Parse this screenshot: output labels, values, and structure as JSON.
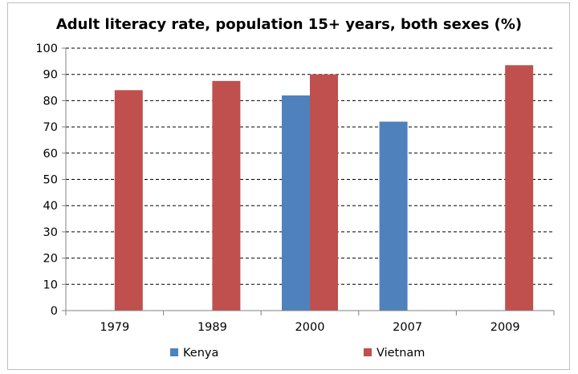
{
  "chart_data": {
    "type": "bar",
    "title": "Adult literacy rate, population 15+ years, both sexes (%)",
    "xlabel": "",
    "ylabel": "",
    "categories": [
      "1979",
      "1989",
      "2000",
      "2007",
      "2009"
    ],
    "series": [
      {
        "name": "Kenya",
        "color": "#4f81bd",
        "values": [
          null,
          null,
          82,
          72,
          null
        ]
      },
      {
        "name": "Vietnam",
        "color": "#c0504d",
        "values": [
          84,
          87.5,
          90,
          null,
          93.5
        ]
      }
    ],
    "ylim": [
      0,
      100
    ],
    "yticks": [
      0,
      10,
      20,
      30,
      40,
      50,
      60,
      70,
      80,
      90,
      100
    ],
    "grid": "horizontal-dashed",
    "legend_position": "bottom"
  }
}
